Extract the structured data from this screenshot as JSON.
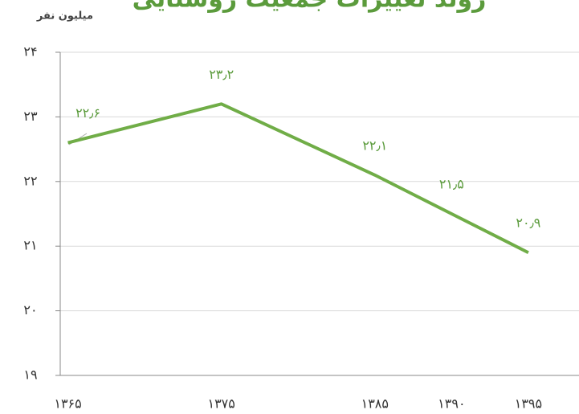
{
  "chart_data": {
    "type": "line",
    "title": "روند تغییرات جمعیت روستایی",
    "y_label": "میلیون نفر",
    "x": [
      1365,
      1375,
      1385,
      1390,
      1395
    ],
    "series": [
      {
        "name": "جمعیت روستایی",
        "color": "#70ad47",
        "values": [
          22.6,
          23.2,
          22.1,
          21.5,
          20.9
        ],
        "value_labels": [
          "۲۲٫۶",
          "۲۳٫۲",
          "۲۲٫۱",
          "۲۱٫۵",
          "۲۰٫۹"
        ]
      }
    ],
    "xlim": [
      1364.5,
      1398.3
    ],
    "xticks": [
      {
        "value": 1365,
        "label": "۱۳۶۵"
      },
      {
        "value": 1375,
        "label": "۱۳۷۵"
      },
      {
        "value": 1385,
        "label": "۱۳۸۵"
      },
      {
        "value": 1390,
        "label": "۱۳۹۰"
      },
      {
        "value": 1395,
        "label": "۱۳۹۵"
      }
    ],
    "ylim": [
      19,
      24
    ],
    "yticks": [
      {
        "value": 19,
        "label": "۱۹"
      },
      {
        "value": 20,
        "label": "۲۰"
      },
      {
        "value": 21,
        "label": "۲۱"
      },
      {
        "value": 22,
        "label": "۲۲"
      },
      {
        "value": 23,
        "label": "۲۳"
      },
      {
        "value": 24,
        "label": "۲۴"
      }
    ],
    "grid": true
  }
}
